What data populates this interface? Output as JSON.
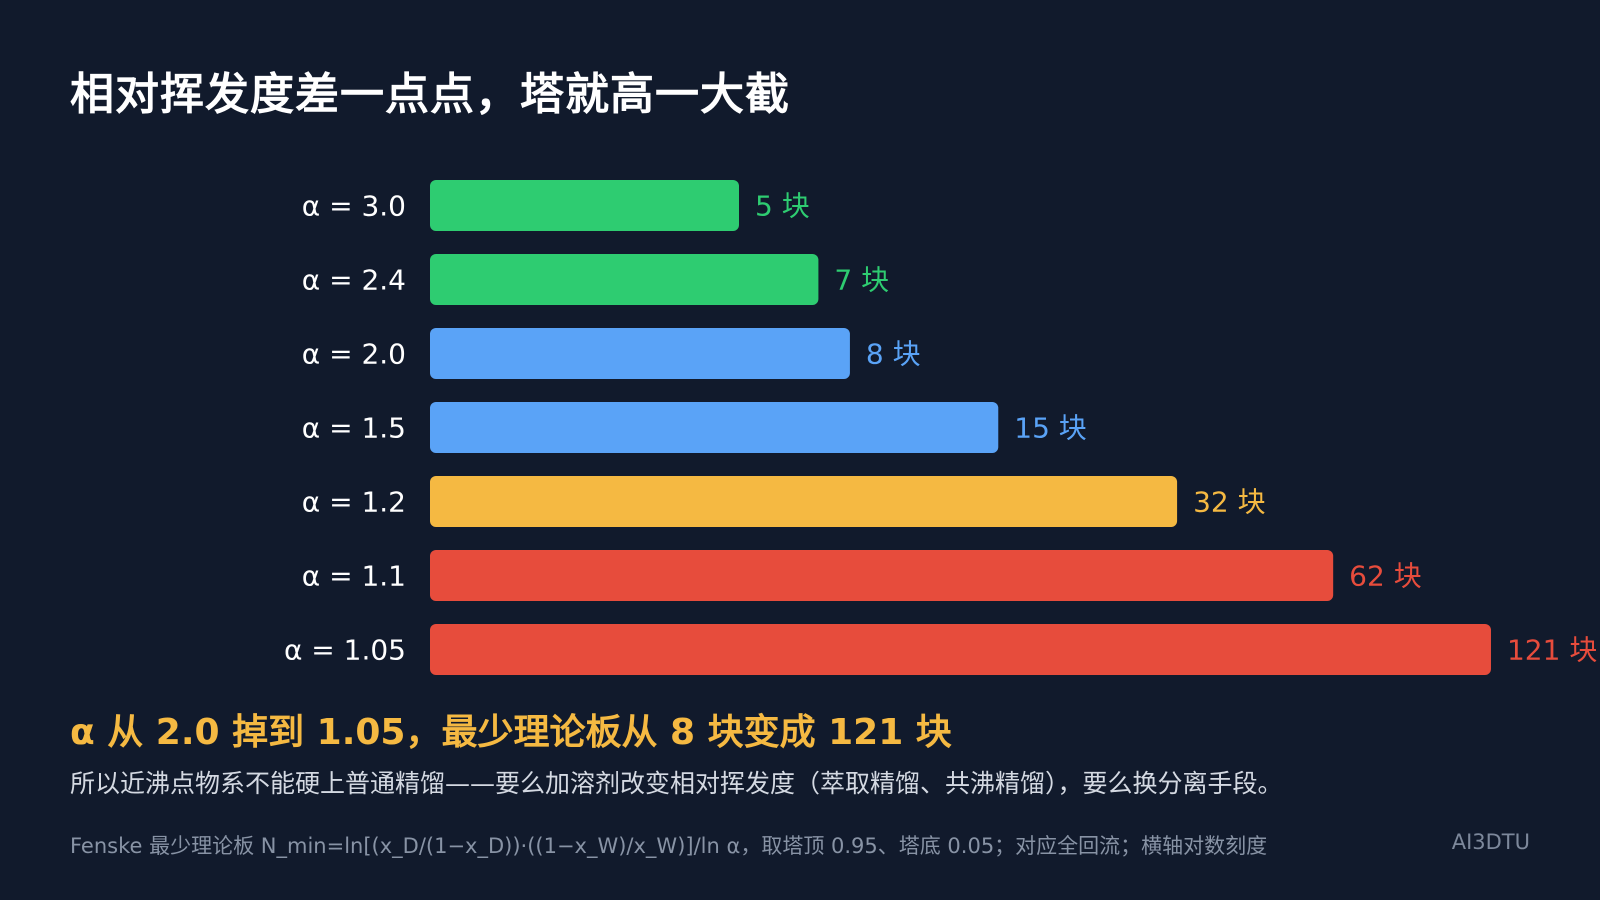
{
  "title": "相对挥发度差一点点，塔就高一大截",
  "chart_data": {
    "type": "bar",
    "orientation": "horizontal",
    "x_scale": "log",
    "categories": [
      "α = 3.0",
      "α = 2.4",
      "α = 2.0",
      "α = 1.5",
      "α = 1.2",
      "α = 1.1",
      "α = 1.05"
    ],
    "values": [
      5,
      7,
      8,
      15,
      32,
      62,
      121
    ],
    "value_labels": [
      "5 块",
      "7 块",
      "8 块",
      "15 块",
      "32 块",
      "62 块",
      "121 块"
    ],
    "colors": [
      "#2ecc71",
      "#2ecc71",
      "#5aa3f7",
      "#5aa3f7",
      "#f5b942",
      "#e74c3c",
      "#e74c3c"
    ],
    "grid": false,
    "legend": "none"
  },
  "conclusion": "α 从 2.0 掉到 1.05，最少理论板从 8 块变成 121 块",
  "explanation": "所以近沸点物系不能硬上普通精馏——要么加溶剂改变相对挥发度（萃取精馏、共沸精馏），要么换分离手段。",
  "footnote": "Fenske 最少理论板 N_min=ln[(x_D/(1−x_D))·((1−x_W)/x_W)]/ln α，取塔顶 0.95、塔底 0.05；对应全回流；横轴对数刻度",
  "watermark": "AI3DTU",
  "colors": {
    "background": "#111a2c",
    "green": "#2ecc71",
    "blue": "#5aa3f7",
    "orange": "#f5b942",
    "red": "#e74c3c"
  }
}
